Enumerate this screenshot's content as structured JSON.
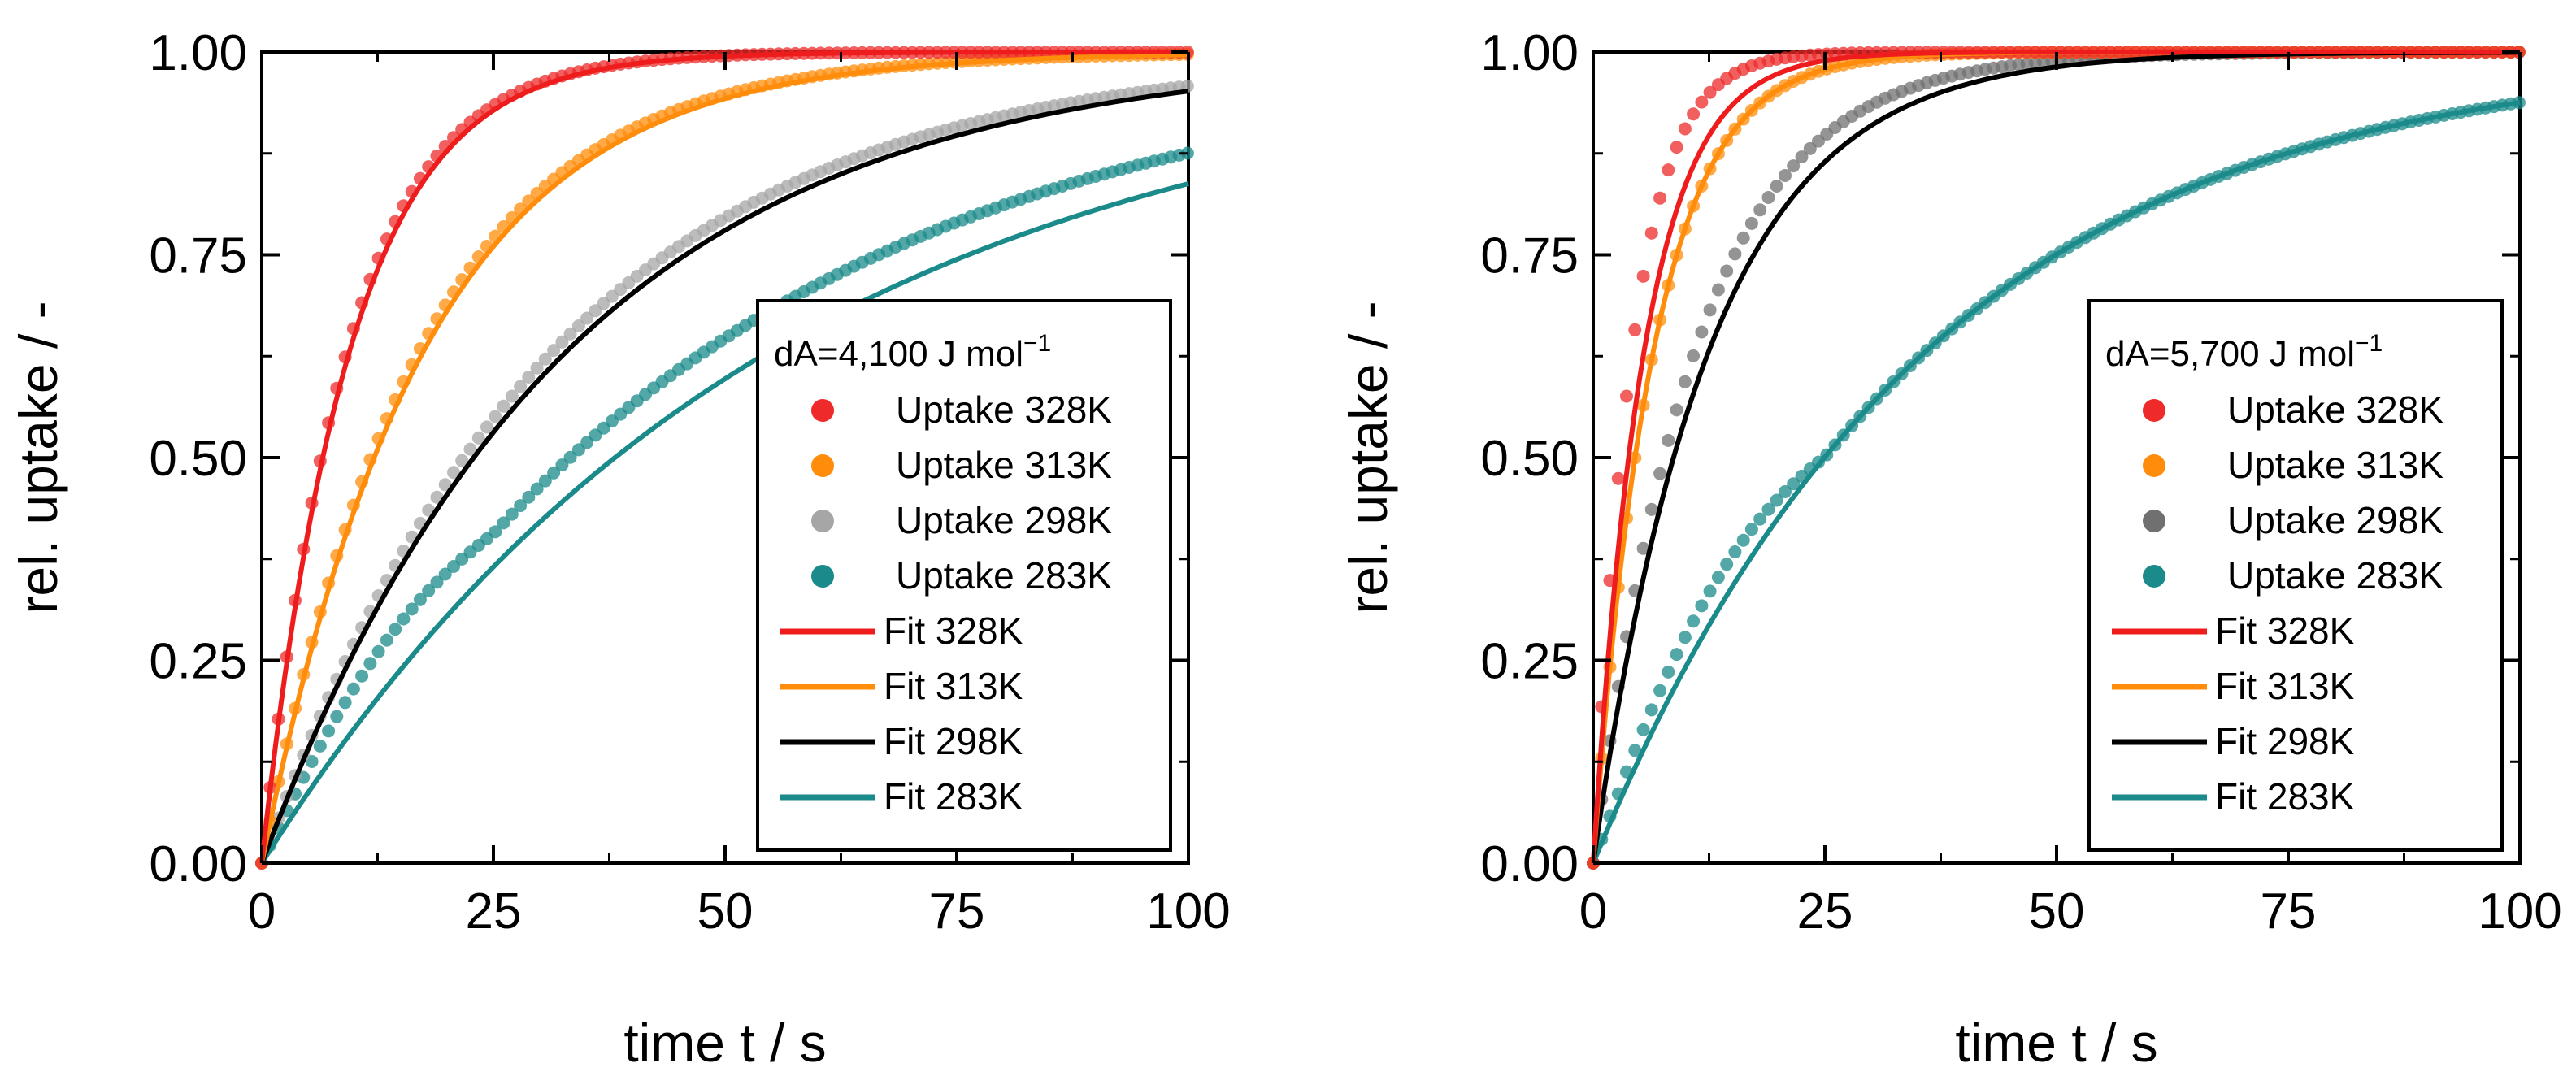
{
  "chart_data": [
    {
      "type": "scatter",
      "xlabel": "time t / s",
      "ylabel": "rel. uptake / -",
      "xlim": [
        0,
        100
      ],
      "ylim": [
        0,
        1
      ],
      "x_ticks": [
        "0",
        "25",
        "50",
        "75",
        "100"
      ],
      "y_ticks": [
        "0.00",
        "0.25",
        "0.50",
        "0.75",
        "1.00"
      ],
      "legend_position": "bottom-right",
      "legend_title": "dA=4,100 J mol",
      "legend_title_sup": "−1",
      "series": [
        {
          "name": "Uptake 328K",
          "kind": "data",
          "color": "#ee2a2a",
          "tau": 9.2,
          "lag": 2.2,
          "kink": 0.0
        },
        {
          "name": "Uptake 313K",
          "kind": "data",
          "color": "#ff8c0a",
          "tau": 17.0,
          "lag": 3.5,
          "kink": 0.0
        },
        {
          "name": "Uptake 298K",
          "kind": "data",
          "color": "#a6a6a6",
          "tau": 31.5,
          "lag": 9.0,
          "kink": 0.0
        },
        {
          "name": "Uptake 283K",
          "kind": "data",
          "color": "#1a8a8a",
          "tau": 48.0,
          "lag": 17.0,
          "kink": 0.03
        },
        {
          "name": "Fit 328K",
          "kind": "fit",
          "color": "#ee1c1c",
          "tau": 9.5,
          "lag": 1.8
        },
        {
          "name": "Fit 313K",
          "kind": "fit",
          "color": "#ff8c0a",
          "tau": 17.5,
          "lag": 3.0
        },
        {
          "name": "Fit 298K",
          "kind": "fit",
          "color": "#000000",
          "tau": 33.0,
          "lag": 7.0
        },
        {
          "name": "Fit 283K",
          "kind": "fit",
          "color": "#1a8a8a",
          "tau": 55.0,
          "lag": 16.0
        }
      ]
    },
    {
      "type": "scatter",
      "xlabel": "time t / s",
      "ylabel": "rel. uptake / -",
      "xlim": [
        0,
        100
      ],
      "ylim": [
        0,
        1
      ],
      "x_ticks": [
        "0",
        "25",
        "50",
        "75",
        "100"
      ],
      "y_ticks": [
        "0.00",
        "0.25",
        "0.50",
        "0.75",
        "1.00"
      ],
      "legend_position": "bottom-right",
      "legend_title": "dA=5,700 J mol",
      "legend_title_sup": "−1",
      "series": [
        {
          "name": "Uptake 328K",
          "kind": "data",
          "color": "#ee2a2a",
          "tau": 4.2,
          "lag": 0.0,
          "kink": 0.0
        },
        {
          "name": "Uptake 313K",
          "kind": "data",
          "color": "#ff8c0a",
          "tau": 6.5,
          "lag": 0.0,
          "kink": 0.0
        },
        {
          "name": "Uptake 298K",
          "kind": "data",
          "color": "#707070",
          "tau": 11.0,
          "lag": 1.5,
          "kink": 0.0
        },
        {
          "name": "Uptake 283K",
          "kind": "data",
          "color": "#1a8a8a",
          "tau": 36.0,
          "lag": 9.0,
          "kink": 0.04
        },
        {
          "name": "Fit 328K",
          "kind": "fit",
          "color": "#ee1c1c",
          "tau": 5.5,
          "lag": 1.5
        },
        {
          "name": "Fit 313K",
          "kind": "fit",
          "color": "#ff8c0a",
          "tau": 6.5,
          "lag": 1.5
        },
        {
          "name": "Fit 298K",
          "kind": "fit",
          "color": "#000000",
          "tau": 12.5,
          "lag": 5.0
        },
        {
          "name": "Fit 283K",
          "kind": "fit",
          "color": "#1a8a8a",
          "tau": 36.0,
          "lag": 11.0
        }
      ]
    }
  ]
}
